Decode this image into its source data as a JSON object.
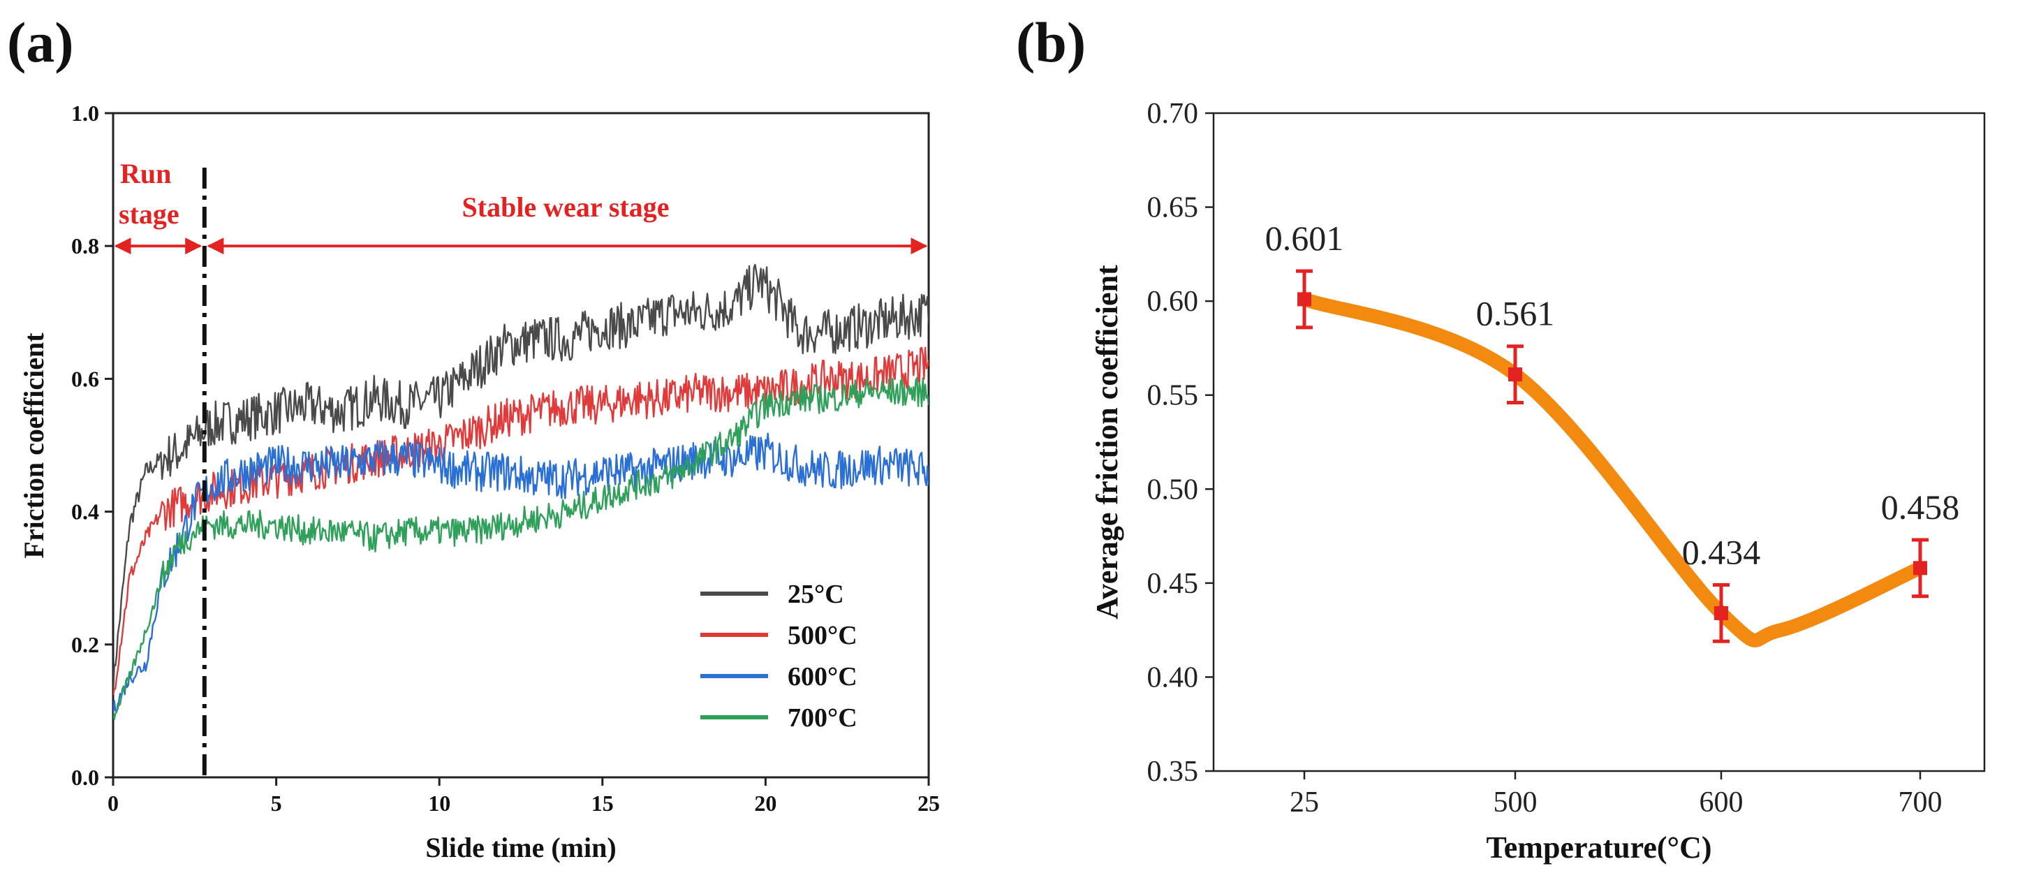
{
  "panels": {
    "a": {
      "label": "(a)"
    },
    "b": {
      "label": "(b)"
    }
  },
  "chart_data": [
    {
      "type": "line",
      "title": "",
      "xlabel": "Slide time (min)",
      "ylabel": "Friction coefficient",
      "xlim": [
        0,
        25
      ],
      "ylim": [
        0.0,
        1.0
      ],
      "x_ticks": [
        "0",
        "5",
        "10",
        "15",
        "20",
        "25"
      ],
      "y_ticks": [
        "0.0",
        "0.2",
        "0.4",
        "0.6",
        "0.8",
        "1.0"
      ],
      "grid": false,
      "legend_position": "bottom-right",
      "series": [
        {
          "name": "25°C",
          "color": "#4a4a4a",
          "x": [
            0,
            0.5,
            1,
            1.5,
            2,
            2.5,
            3,
            4,
            5,
            6,
            7,
            8,
            9,
            10,
            11,
            12,
            13,
            14,
            15,
            16,
            17,
            18,
            19,
            19.8,
            20.5,
            21,
            22,
            23,
            24,
            25
          ],
          "y": [
            0.14,
            0.38,
            0.46,
            0.48,
            0.49,
            0.51,
            0.53,
            0.54,
            0.55,
            0.56,
            0.55,
            0.57,
            0.56,
            0.57,
            0.61,
            0.65,
            0.66,
            0.66,
            0.68,
            0.68,
            0.7,
            0.7,
            0.71,
            0.75,
            0.71,
            0.67,
            0.67,
            0.68,
            0.69,
            0.7
          ]
        },
        {
          "name": "500°C",
          "color": "#e03a3a",
          "x": [
            0,
            0.5,
            1,
            1.5,
            2,
            2.5,
            3,
            4,
            5,
            6,
            7,
            8,
            9,
            10,
            11,
            12,
            13,
            14,
            15,
            16,
            17,
            18,
            19,
            20,
            21,
            22,
            23,
            24,
            25
          ],
          "y": [
            0.12,
            0.3,
            0.36,
            0.4,
            0.41,
            0.42,
            0.43,
            0.44,
            0.45,
            0.46,
            0.47,
            0.48,
            0.49,
            0.5,
            0.52,
            0.54,
            0.55,
            0.56,
            0.56,
            0.57,
            0.57,
            0.58,
            0.58,
            0.58,
            0.59,
            0.6,
            0.6,
            0.61,
            0.62
          ]
        },
        {
          "name": "600°C",
          "color": "#2a6fd6",
          "x": [
            0,
            0.5,
            1,
            1.5,
            2,
            2.5,
            3,
            4,
            5,
            6,
            7,
            8,
            9,
            10,
            11,
            12,
            13,
            14,
            15,
            16,
            17,
            18,
            19,
            20,
            21,
            22,
            23,
            24,
            25
          ],
          "y": [
            0.1,
            0.15,
            0.17,
            0.3,
            0.35,
            0.41,
            0.44,
            0.46,
            0.47,
            0.47,
            0.47,
            0.48,
            0.48,
            0.47,
            0.46,
            0.46,
            0.45,
            0.45,
            0.46,
            0.46,
            0.47,
            0.48,
            0.48,
            0.49,
            0.47,
            0.46,
            0.47,
            0.47,
            0.46
          ]
        },
        {
          "name": "700°C",
          "color": "#2fa05a",
          "x": [
            0,
            0.5,
            1,
            1.5,
            2,
            2.5,
            3,
            4,
            5,
            6,
            7,
            8,
            9,
            10,
            11,
            12,
            13,
            14,
            15,
            16,
            17,
            18,
            19,
            20,
            21,
            22,
            23,
            24,
            25
          ],
          "y": [
            0.09,
            0.15,
            0.22,
            0.3,
            0.35,
            0.37,
            0.38,
            0.38,
            0.38,
            0.37,
            0.37,
            0.36,
            0.37,
            0.37,
            0.37,
            0.38,
            0.39,
            0.4,
            0.42,
            0.44,
            0.45,
            0.48,
            0.51,
            0.56,
            0.57,
            0.57,
            0.58,
            0.58,
            0.58
          ]
        }
      ],
      "annotations": {
        "run_stage": [
          "Run",
          "stage"
        ],
        "stable_stage": "Stable wear stage",
        "stage_boundary_x": 2.8,
        "arrow_y": 0.8,
        "arrow_color": "#e32222"
      }
    },
    {
      "type": "line",
      "title": "",
      "xlabel": "Temperature(°C)",
      "ylabel": "Average friction coefficient",
      "categories": [
        "25",
        "500",
        "600",
        "700"
      ],
      "ylim": [
        0.35,
        0.7
      ],
      "y_ticks": [
        "0.35",
        "0.40",
        "0.45",
        "0.50",
        "0.55",
        "0.60",
        "0.65",
        "0.70"
      ],
      "grid": false,
      "line_color": "#f28a10",
      "marker_color": "#e32222",
      "series": [
        {
          "values": [
            0.601,
            0.561,
            0.434,
            0.458
          ],
          "labels": [
            "0.601",
            "0.561",
            "0.434",
            "0.458"
          ],
          "errors": [
            0.015,
            0.015,
            0.015,
            0.015
          ]
        }
      ],
      "curve_min": {
        "x_index": 2.3,
        "value": 0.425
      }
    }
  ]
}
